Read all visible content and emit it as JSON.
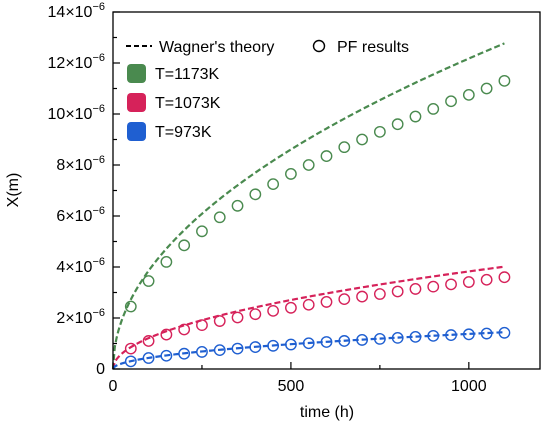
{
  "chart_data": {
    "type": "scatter",
    "xlabel": "time (h)",
    "ylabel": "X(m)",
    "xlim": [
      0,
      1200
    ],
    "ylim": [
      0,
      1.4e-05
    ],
    "x_ticks": [
      0,
      500,
      1000
    ],
    "y_ticks": [
      0,
      2e-06,
      4e-06,
      6e-06,
      8e-06,
      1e-05,
      1.2e-05,
      1.4e-05
    ],
    "y_tick_labels": [
      {
        "base": "0",
        "exp": ""
      },
      {
        "base": "2×10",
        "exp": "−6"
      },
      {
        "base": "4×10",
        "exp": "−6"
      },
      {
        "base": "6×10",
        "exp": "−6"
      },
      {
        "base": "8×10",
        "exp": "−6"
      },
      {
        "base": "10×10",
        "exp": "−6"
      },
      {
        "base": "12×10",
        "exp": "−6"
      },
      {
        "base": "14×10",
        "exp": "−6"
      }
    ],
    "grid": false,
    "legend_placement": "top-left",
    "legend": {
      "line_label": "Wagner's theory",
      "marker_label": "PF results"
    },
    "series": [
      {
        "name": "T=1173K",
        "color": "#4a8a4f",
        "theory": {
          "coef": 3.85e-07,
          "exponent": 0.5,
          "x_max": 1100
        },
        "pf_x": [
          50,
          100,
          150,
          200,
          250,
          300,
          350,
          400,
          450,
          500,
          550,
          600,
          650,
          700,
          750,
          800,
          850,
          900,
          950,
          1000,
          1050,
          1100
        ],
        "pf_y": [
          2.45e-06,
          3.45e-06,
          4.2e-06,
          4.85e-06,
          5.4e-06,
          5.95e-06,
          6.4e-06,
          6.85e-06,
          7.25e-06,
          7.65e-06,
          8e-06,
          8.35e-06,
          8.7e-06,
          9e-06,
          9.3e-06,
          9.6e-06,
          9.9e-06,
          1.02e-05,
          1.05e-05,
          1.075e-05,
          1.1e-05,
          1.13e-05
        ]
      },
      {
        "name": "T=1073K",
        "color": "#d6225a",
        "theory": {
          "coef": 1.21e-07,
          "exponent": 0.5,
          "x_max": 1100
        },
        "pf_x": [
          50,
          100,
          150,
          200,
          250,
          300,
          350,
          400,
          450,
          500,
          550,
          600,
          650,
          700,
          750,
          800,
          850,
          900,
          950,
          1000,
          1050,
          1100
        ],
        "pf_y": [
          8e-07,
          1.1e-06,
          1.35e-06,
          1.55e-06,
          1.72e-06,
          1.88e-06,
          2.02e-06,
          2.15e-06,
          2.28e-06,
          2.4e-06,
          2.52e-06,
          2.63e-06,
          2.74e-06,
          2.84e-06,
          2.94e-06,
          3.04e-06,
          3.14e-06,
          3.23e-06,
          3.32e-06,
          3.41e-06,
          3.5e-06,
          3.6e-06
        ]
      },
      {
        "name": "T=973K",
        "color": "#1f5fd1",
        "theory": {
          "coef": 4.35e-08,
          "exponent": 0.5,
          "x_max": 1100
        },
        "pf_x": [
          50,
          100,
          150,
          200,
          250,
          300,
          350,
          400,
          450,
          500,
          550,
          600,
          650,
          700,
          750,
          800,
          850,
          900,
          950,
          1000,
          1050,
          1100
        ],
        "pf_y": [
          3e-07,
          4.3e-07,
          5.2e-07,
          6e-07,
          6.7e-07,
          7.4e-07,
          8e-07,
          8.6e-07,
          9.1e-07,
          9.6e-07,
          1.01e-06,
          1.06e-06,
          1.1e-06,
          1.14e-06,
          1.18e-06,
          1.22e-06,
          1.26e-06,
          1.3e-06,
          1.33e-06,
          1.36e-06,
          1.39e-06,
          1.42e-06
        ]
      }
    ]
  }
}
